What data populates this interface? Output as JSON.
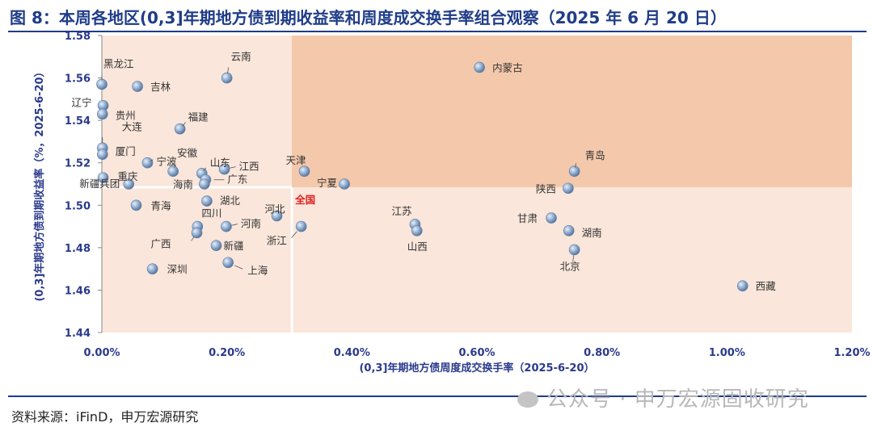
{
  "header": {
    "title": "图 8：本周各地区(0,3]年期地方债到期收益率和周度成交换手率组合观察（2025 年 6 月 20 日）"
  },
  "footer": {
    "source": "资料来源：iFinD，申万宏源研究",
    "watermark": "公众号 · 申万宏源固收研究"
  },
  "colors": {
    "band_light": "#fae6da",
    "band_dark": "#f4c8aa",
    "title": "#1f3c88",
    "point": "#7d9bc0",
    "point_edge": "#5e7ea6",
    "highlight": "#e02020"
  },
  "chart_data": {
    "type": "scatter",
    "title": "本周各地区(0,3]年期地方债到期收益率和周度成交换手率组合观察（2025 年 6 月 20 日）",
    "xlabel": "(0,3]年期地方债周度成交换手率（2025-6-20）",
    "ylabel": "(0,3]年期地方债到期收益率（%，2025-6-20）",
    "xlim": [
      0,
      1.2
    ],
    "ylim": [
      1.44,
      1.58
    ],
    "xticks": [
      0,
      0.2,
      0.4,
      0.6,
      0.8,
      1.0,
      1.2
    ],
    "xtick_labels": [
      "0.00%",
      "0.20%",
      "0.40%",
      "0.60%",
      "0.80%",
      "1.00%",
      "1.20%"
    ],
    "yticks": [
      1.44,
      1.46,
      1.48,
      1.5,
      1.52,
      1.54,
      1.56,
      1.58
    ],
    "ytick_labels": [
      "1.44",
      "1.46",
      "1.48",
      "1.50",
      "1.52",
      "1.54",
      "1.56",
      "1.58"
    ],
    "reference": {
      "name": "全国",
      "x": 0.304,
      "y": 1.5085
    },
    "points": [
      {
        "name": "黑龙江",
        "x": 0.0,
        "y": 1.557
      },
      {
        "name": "云南",
        "x": 0.2,
        "y": 1.56
      },
      {
        "name": "吉林",
        "x": 0.057,
        "y": 1.556
      },
      {
        "name": "内蒙古",
        "x": 0.604,
        "y": 1.565
      },
      {
        "name": "辽宁",
        "x": 0.002,
        "y": 1.547
      },
      {
        "name": "贵州",
        "x": 0.001,
        "y": 1.543
      },
      {
        "name": "福建",
        "x": 0.125,
        "y": 1.536
      },
      {
        "name": "大连",
        "x": 0.001,
        "y": 1.527
      },
      {
        "name": "厦门",
        "x": 0.001,
        "y": 1.524
      },
      {
        "name": "宁波",
        "x": 0.073,
        "y": 1.52
      },
      {
        "name": "安徽",
        "x": 0.114,
        "y": 1.516
      },
      {
        "name": "山东",
        "x": 0.16,
        "y": 1.515
      },
      {
        "name": "江西",
        "x": 0.196,
        "y": 1.517
      },
      {
        "name": "天津",
        "x": 0.324,
        "y": 1.516
      },
      {
        "name": "宁夏",
        "x": 0.388,
        "y": 1.51
      },
      {
        "name": "青岛",
        "x": 0.756,
        "y": 1.516
      },
      {
        "name": "重庆",
        "x": 0.002,
        "y": 1.513
      },
      {
        "name": "广东",
        "x": 0.166,
        "y": 1.512
      },
      {
        "name": "海南",
        "x": 0.164,
        "y": 1.51
      },
      {
        "name": "新疆兵团",
        "x": 0.043,
        "y": 1.51
      },
      {
        "name": "陕西",
        "x": 0.746,
        "y": 1.508
      },
      {
        "name": "全国",
        "x": 0.304,
        "y": 1.5085
      },
      {
        "name": "湖北",
        "x": 0.168,
        "y": 1.502
      },
      {
        "name": "青海",
        "x": 0.055,
        "y": 1.5
      },
      {
        "name": "四川",
        "x": 0.153,
        "y": 1.49
      },
      {
        "name": "河南",
        "x": 0.199,
        "y": 1.49
      },
      {
        "name": "河北",
        "x": 0.28,
        "y": 1.495
      },
      {
        "name": "浙江",
        "x": 0.319,
        "y": 1.49
      },
      {
        "name": "江苏",
        "x": 0.501,
        "y": 1.491
      },
      {
        "name": "山西",
        "x": 0.504,
        "y": 1.488
      },
      {
        "name": "甘肃",
        "x": 0.719,
        "y": 1.494
      },
      {
        "name": "湖南",
        "x": 0.747,
        "y": 1.488
      },
      {
        "name": "广西",
        "x": 0.152,
        "y": 1.487
      },
      {
        "name": "新疆",
        "x": 0.183,
        "y": 1.481
      },
      {
        "name": "北京",
        "x": 0.756,
        "y": 1.479
      },
      {
        "name": "深圳",
        "x": 0.081,
        "y": 1.47
      },
      {
        "name": "上海",
        "x": 0.202,
        "y": 1.473
      },
      {
        "name": "西藏",
        "x": 1.025,
        "y": 1.462
      }
    ]
  }
}
